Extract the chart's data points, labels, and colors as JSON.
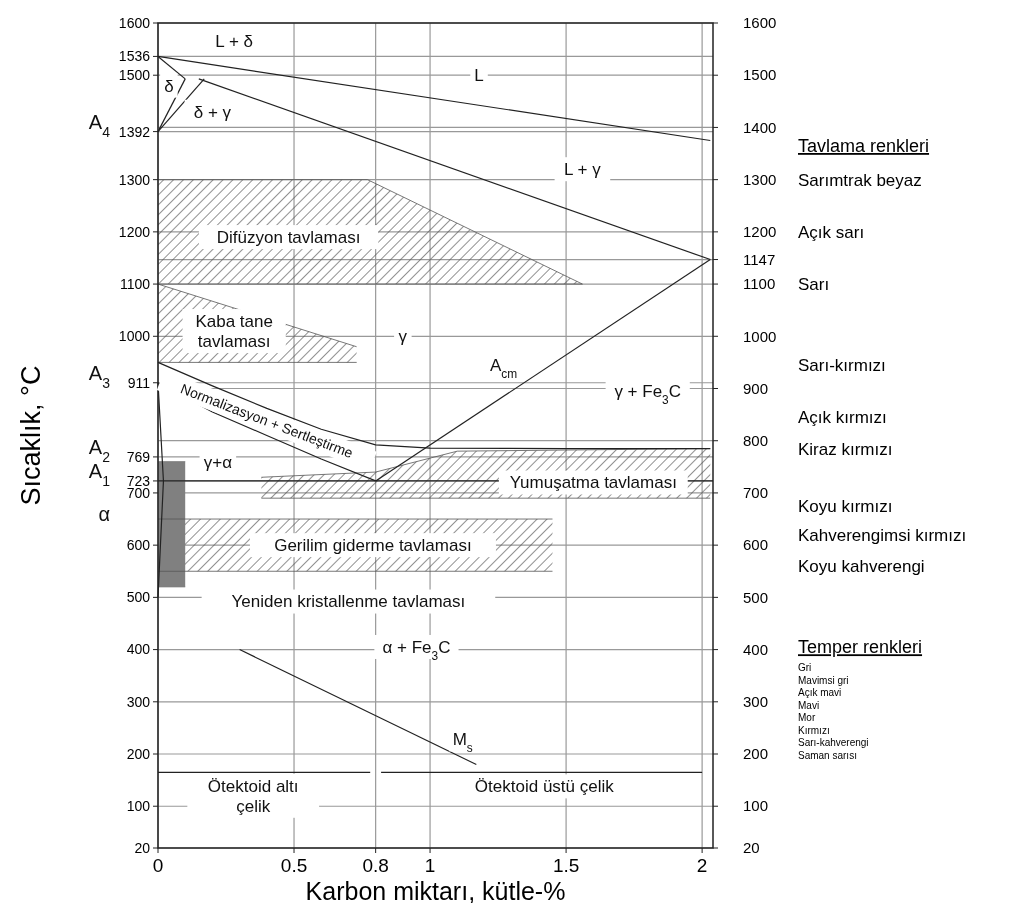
{
  "chart_data": {
    "type": "line",
    "xlabel": "Karbon miktarı, kütle-%",
    "ylabel": "Sıcaklık, °C",
    "xlim": [
      0,
      2.04
    ],
    "xticks": [
      0,
      0.5,
      0.8,
      1,
      1.5,
      2
    ],
    "ylim": [
      20,
      1600
    ],
    "yticks": [
      20,
      100,
      200,
      300,
      400,
      500,
      600,
      700,
      723,
      769,
      911,
      1000,
      1100,
      1200,
      1300,
      1392,
      1500,
      1536,
      1600
    ],
    "y2lim": [
      20,
      1600
    ],
    "y2ticks": [
      20,
      100,
      200,
      300,
      400,
      500,
      600,
      700,
      800,
      900,
      1000,
      1100,
      1147,
      1200,
      1300,
      1400,
      1500,
      1600
    ],
    "grid": true,
    "series": [
      {
        "color": "#555555",
        "x": [
          0,
          0.77,
          1.56
        ],
        "values": [
          1300,
          1300,
          1100
        ]
      },
      {
        "color": "#555555",
        "x": [
          0,
          1.56
        ],
        "values": [
          1100,
          1100
        ]
      },
      {
        "color": "#555555",
        "x": [
          0,
          0.73
        ],
        "values": [
          1100,
          980
        ]
      },
      {
        "color": "#555555",
        "x": [
          0,
          0.73
        ],
        "values": [
          950,
          950
        ]
      },
      {
        "color": "#555555",
        "x": [
          0.38,
          0.8,
          1.1,
          2.03
        ],
        "values": [
          730,
          740,
          780,
          785
        ]
      },
      {
        "color": "#555555",
        "x": [
          0.38,
          2.03
        ],
        "values": [
          690,
          690
        ]
      },
      {
        "color": "#555555",
        "x": [
          0,
          1.45
        ],
        "values": [
          650,
          650
        ]
      },
      {
        "color": "#555555",
        "x": [
          0,
          1.45
        ],
        "values": [
          550,
          550
        ]
      },
      {
        "color": "#808080",
        "x": [
          0,
          0.1
        ],
        "values": [
          760,
          760
        ]
      },
      {
        "color": "#808080",
        "x": [
          0,
          0.1
        ],
        "values": [
          520,
          520
        ]
      },
      {
        "color": "#222222",
        "x": [
          0,
          2.03
        ],
        "values": [
          1536,
          1375
        ]
      },
      {
        "color": "#222222",
        "x": [
          0.15,
          2.03
        ],
        "values": [
          1493,
          1147
        ]
      },
      {
        "color": "#222222",
        "x": [
          0,
          0.1
        ],
        "values": [
          1536,
          1493
        ]
      },
      {
        "color": "#222222",
        "x": [
          0,
          0.1
        ],
        "values": [
          1392,
          1493
        ]
      },
      {
        "color": "#222222",
        "x": [
          0,
          0.17
        ],
        "values": [
          1392,
          1493
        ]
      },
      {
        "color": "#222222",
        "x": [
          0.8,
          2.03
        ],
        "values": [
          723,
          1147
        ]
      },
      {
        "color": "#222222",
        "x": [
          0,
          0.2,
          0.4,
          0.6,
          0.8
        ],
        "values": [
          911,
          855,
          810,
          765,
          723
        ]
      },
      {
        "color": "#222222",
        "x": [
          0,
          0.2,
          0.4,
          0.6,
          0.8,
          1,
          1.5,
          2.03
        ],
        "values": [
          950,
          905,
          862,
          822,
          792,
          786,
          785,
          785
        ]
      },
      {
        "color": "#222222",
        "x": [
          0,
          0.02,
          0
        ],
        "values": [
          911,
          723,
          500
        ]
      },
      {
        "color": "#222222",
        "x": [
          0.3,
          1.17
        ],
        "values": [
          400,
          180
        ]
      },
      {
        "color": "#222222",
        "x": [
          0,
          0.78
        ],
        "values": [
          165,
          165
        ]
      },
      {
        "color": "#222222",
        "x": [
          0.82,
          2
        ],
        "values": [
          165,
          165
        ]
      }
    ],
    "ref_lines": [
      {
        "axis": "y",
        "value": 723
      }
    ],
    "annotations": [
      "Tavlama renkleri",
      "Sarımtrak beyaz",
      "Açık sarı",
      "Sarı",
      "Sarı-kırmızı",
      "Açık kırmızı",
      "Kiraz kırmızı",
      "Koyu kırmızı",
      "Kahverengimsi kırmızı",
      "Koyu kahverengi",
      "Temper renkleri",
      "Gri",
      "Mavimsi gri",
      "Açık mavi",
      "Mavi",
      "Mor",
      "Kırmızı",
      "Sarı-kahverengi",
      "Saman sarısı",
      "L + δ",
      "L",
      "δ",
      "δ + γ",
      "L + γ",
      "Difüzyon tavlaması",
      "Kaba  tane\ntavlaması",
      "γ",
      "A$_{cm}$",
      "γ + Fe$_{3}$C",
      "γ+α",
      "Gerilim giderme tavlaması",
      "Yeniden kristallenme tavlaması",
      "α + Fe$_{3}$C",
      "M$_{s}$",
      "Ötektoid altı\nçelik",
      "Ötektoid üstü çelik",
      "Normalizasyon + Sertleştirme",
      "A$_{4}$",
      "A$_{3}$",
      "A$_{2}$",
      "A$_{1}$",
      "α",
      {
        "text": "Yumuşatma tavlaması",
        "x": 1.6,
        "y": 720
      }
    ]
  }
}
